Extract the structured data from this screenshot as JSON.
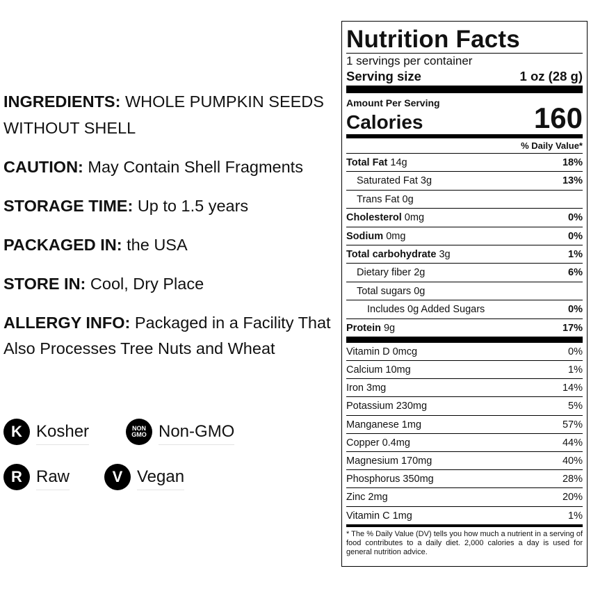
{
  "info": [
    {
      "label": "INGREDIENTS:",
      "text": "WHOLE PUMPKIN SEEDS WITHOUT SHELL"
    },
    {
      "label": "CAUTION:",
      "text": "May Contain Shell Fragments"
    },
    {
      "label": "STORAGE TIME:",
      "text": "Up to 1.5 years"
    },
    {
      "label": "PACKAGED IN:",
      "text": "the USA"
    },
    {
      "label": "STORE IN:",
      "text": "Cool, Dry Place"
    },
    {
      "label": "ALLERGY INFO:",
      "text": "Packaged in a Facility That Also Processes Tree Nuts and Wheat"
    }
  ],
  "badges": [
    {
      "icon": "K",
      "label": "Kosher"
    },
    {
      "icon": "NON GMO",
      "label": "Non-GMO"
    },
    {
      "icon": "R",
      "label": "Raw"
    },
    {
      "icon": "V",
      "label": "Vegan"
    }
  ],
  "label": {
    "title": "Nutrition Facts",
    "servings": "1 servings per container",
    "serving_size": {
      "label": "Serving size",
      "value": "1 oz (28 g)"
    },
    "amount_per_serving": "Amount Per Serving",
    "calories": {
      "label": "Calories",
      "value": "160"
    },
    "dv_header": "% Daily Value*",
    "nutrients": [
      {
        "name": "Total Fat",
        "amount": "14g",
        "dv": "18%"
      },
      {
        "name": "Saturated Fat",
        "amount": "3g",
        "dv": "13%"
      },
      {
        "name": "Trans Fat",
        "amount": "0g"
      },
      {
        "name": "Cholesterol",
        "amount": "0mg",
        "dv": "0%"
      },
      {
        "name": "Sodium",
        "amount": "0mg",
        "dv": "0%"
      },
      {
        "name": "Total carbohydrate",
        "amount": "3g",
        "dv": "1%"
      },
      {
        "name": "Dietary fiber",
        "amount": "2g",
        "dv": "6%"
      },
      {
        "name": "Total sugars",
        "amount": "0g"
      },
      {
        "name": "Includes 0g Added Sugars",
        "dv": "0%"
      },
      {
        "name": "Protein",
        "amount": "9g",
        "dv": "17%"
      }
    ],
    "vitamins": [
      {
        "name": "Vitamin D 0mcg",
        "dv": "0%"
      },
      {
        "name": "Calcium 10mg",
        "dv": "1%"
      },
      {
        "name": "Iron 3mg",
        "dv": "14%"
      },
      {
        "name": "Potassium 230mg",
        "dv": "5%"
      },
      {
        "name": "Manganese 1mg",
        "dv": "57%"
      },
      {
        "name": "Copper 0.4mg",
        "dv": "44%"
      },
      {
        "name": "Magnesium 170mg",
        "dv": "40%"
      },
      {
        "name": "Phosphorus 350mg",
        "dv": "28%"
      },
      {
        "name": "Zinc 2mg",
        "dv": "20%"
      },
      {
        "name": "Vitamin C 1mg",
        "dv": "1%"
      }
    ],
    "footnote": "* The % Daily Value (DV) tells you how much a nutrient in a serving of food contributes to a daily diet. 2,000 calories a day is used for general nutrition advice."
  }
}
